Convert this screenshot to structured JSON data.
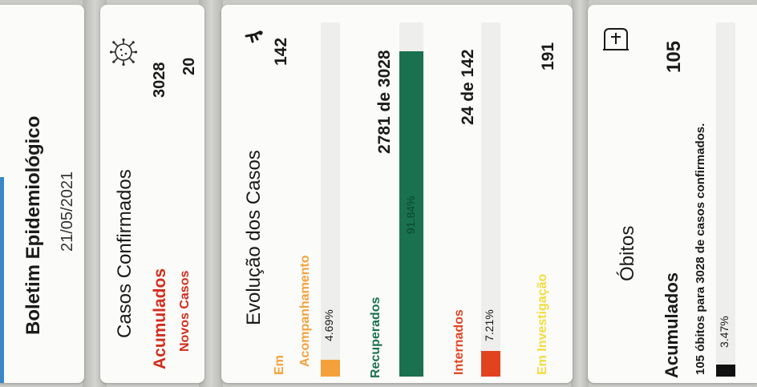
{
  "header": {
    "title": "Boletim Epidemiológico",
    "date": "21/05/2021"
  },
  "confirmados": {
    "title": "Casos Confirmados",
    "accumulated_label": "Acumulados",
    "accumulated_value": "3028",
    "new_label": "Novos Casos",
    "new_value": "20"
  },
  "evolucao": {
    "title": "Evolução dos Casos",
    "acompanhamento": {
      "label_line1": "Em",
      "label_line2": "Acompanhamento",
      "value": "142",
      "percent_text": "4.69%",
      "fraction": 0.0469,
      "color": "#f4a13b"
    },
    "recuperados": {
      "label": "Recuperados",
      "value": "2781 de 3028",
      "percent_text": "91.84%",
      "fraction": 0.9184,
      "color": "#19714f"
    },
    "internados": {
      "label": "Internados",
      "value": "24 de 142",
      "percent_text": "7.21%",
      "fraction": 0.0721,
      "color": "#e2431f"
    },
    "investigacao": {
      "label": "Em Investigação",
      "value": "191",
      "color": "#f2dc3c"
    }
  },
  "obitos": {
    "title": "Óbitos",
    "accumulated_label": "Acumulados",
    "accumulated_value": "105",
    "note": "105 óbitos para 3028 de casos confirmados.",
    "percent_text": "3.47%",
    "fraction": 0.0347,
    "color": "#111111"
  },
  "colors": {
    "red_label": "#d42d1c",
    "header_accent": "#3a86c8"
  },
  "icons": [
    "virus-icon",
    "walking-person-icon",
    "tombstone-icon"
  ]
}
